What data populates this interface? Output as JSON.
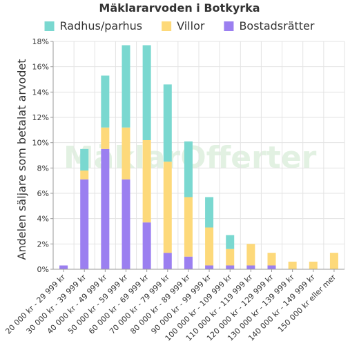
{
  "chart_data": {
    "type": "bar",
    "stacked": true,
    "title": "Mäklararvoden i Botkyrka",
    "ylabel": "Andelen säljare som betalat arvodet",
    "xlabel": "",
    "ylim": [
      0,
      18
    ],
    "y_unit": "%",
    "yticks": [
      "0%",
      "2%",
      "4%",
      "6%",
      "8%",
      "10%",
      "12%",
      "14%",
      "16%",
      "18%"
    ],
    "grid": true,
    "legend_position": "top",
    "watermark": "MäklarOfferter",
    "categories": [
      "20 000 kr - 29 999 kr",
      "30 000 kr - 39 999 kr",
      "40 000 kr - 49 999 kr",
      "50 000 kr - 59 999 kr",
      "60 000 kr - 69 999 kr",
      "70 000 kr - 79 999 kr",
      "80 000 kr - 89 999 kr",
      "90 000 kr - 99 999 kr",
      "100 000 kr - 109 999 kr",
      "110 000 kr - 119 999 kr",
      "120 000 kr - 129 999 kr",
      "130 000 kr - 139 999 kr",
      "140 000 kr - 149 999 kr",
      "150 000 kr eller mer"
    ],
    "series": [
      {
        "name": "Bostadsrätter",
        "color": "#9b7ff0",
        "values": [
          0.3,
          7.1,
          9.5,
          7.1,
          3.7,
          1.3,
          1.0,
          0.3,
          0.3,
          0.3,
          0.3,
          0.0,
          0.0,
          0.0
        ]
      },
      {
        "name": "Villor",
        "color": "#fdd97a",
        "values": [
          0.0,
          0.7,
          1.7,
          4.1,
          6.5,
          7.2,
          4.7,
          3.0,
          1.3,
          1.7,
          1.0,
          0.6,
          0.6,
          1.3
        ]
      },
      {
        "name": "Radhus/parhus",
        "color": "#7ad8d0",
        "values": [
          0.0,
          1.7,
          4.1,
          6.5,
          7.5,
          6.1,
          4.4,
          2.4,
          1.1,
          0.0,
          0.0,
          0.0,
          0.0,
          0.0
        ]
      }
    ],
    "legend_order": [
      "Radhus/parhus",
      "Villor",
      "Bostadsrätter"
    ]
  }
}
